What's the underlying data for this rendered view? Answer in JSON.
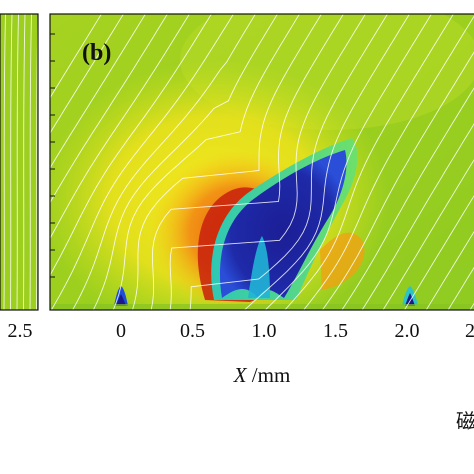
{
  "chart_data": {
    "type": "heatmap",
    "panel_label": "(b)",
    "xlabel_italic": "X",
    "xlabel_unit": " /mm",
    "x_ticks": [
      0,
      0.5,
      1.0,
      1.5,
      2.0
    ],
    "x_tick_labels": [
      "0",
      "0.5",
      "1.0",
      "1.5",
      "2.0"
    ],
    "xlim": [
      -0.1,
      2.2
    ],
    "left_panel_tick_label": "2.5",
    "right_cut_tick_label": "2",
    "grid": false,
    "colormap": [
      "#1a1a8c",
      "#1e3ad8",
      "#19b8c8",
      "#4fd46a",
      "#9ccf1e",
      "#e8e41a",
      "#f29a12",
      "#e04010",
      "#b81a0a"
    ],
    "background_color": "#9ccf1e",
    "features": [
      {
        "kind": "low-value lobe",
        "x_center": 1.12,
        "x_extent": [
          0.76,
          1.65
        ]
      },
      {
        "kind": "high-value shell",
        "x_center": 0.7,
        "x_extent": [
          0.1,
          1.6
        ]
      },
      {
        "kind": "edge dip",
        "x_center": -0.02
      },
      {
        "kind": "edge dip",
        "x_center": 2.06
      }
    ],
    "streamline_count": 30,
    "streamline_color": "#ffffff",
    "caption_partial": "磁"
  }
}
